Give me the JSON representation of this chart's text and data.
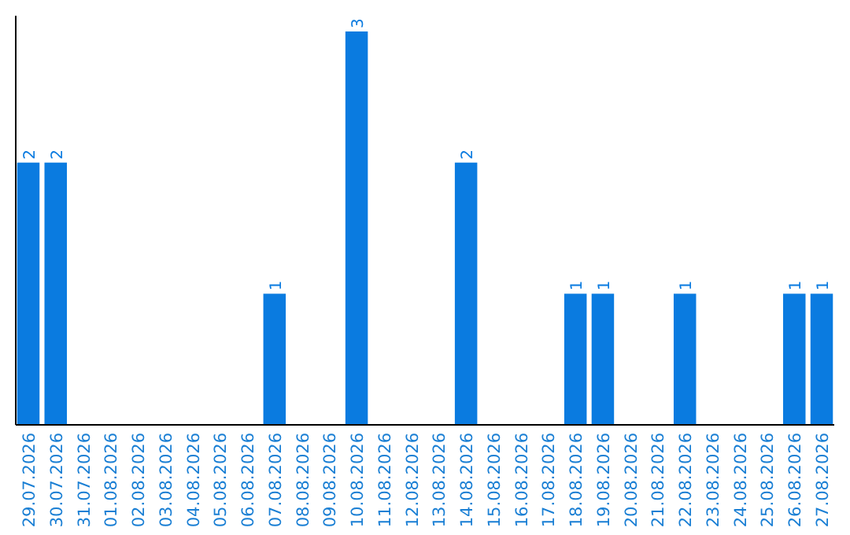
{
  "chart_data": {
    "type": "bar",
    "categories": [
      "29.07.2026",
      "30.07.2026",
      "31.07.2026",
      "01.08.2026",
      "02.08.2026",
      "03.08.2026",
      "04.08.2026",
      "05.08.2026",
      "06.08.2026",
      "07.08.2026",
      "08.08.2026",
      "09.08.2026",
      "10.08.2026",
      "11.08.2026",
      "12.08.2026",
      "13.08.2026",
      "14.08.2026",
      "15.08.2026",
      "16.08.2026",
      "17.08.2026",
      "18.08.2026",
      "19.08.2026",
      "20.08.2026",
      "21.08.2026",
      "22.08.2026",
      "23.08.2026",
      "24.08.2026",
      "25.08.2026",
      "26.08.2026",
      "27.08.2026"
    ],
    "values": [
      2,
      2,
      0,
      0,
      0,
      0,
      0,
      0,
      0,
      1,
      0,
      0,
      3,
      0,
      0,
      0,
      2,
      0,
      0,
      0,
      1,
      1,
      0,
      0,
      1,
      0,
      0,
      0,
      1,
      1
    ],
    "value_labels": [
      "2",
      "2",
      null,
      null,
      null,
      null,
      null,
      null,
      null,
      "1",
      null,
      null,
      "3",
      null,
      null,
      null,
      "2",
      null,
      null,
      null,
      "1",
      "1",
      null,
      null,
      "1",
      null,
      null,
      null,
      "1",
      "1"
    ],
    "color": "#0a7be0",
    "ylim": [
      0,
      3
    ],
    "tick_labels": "x"
  }
}
